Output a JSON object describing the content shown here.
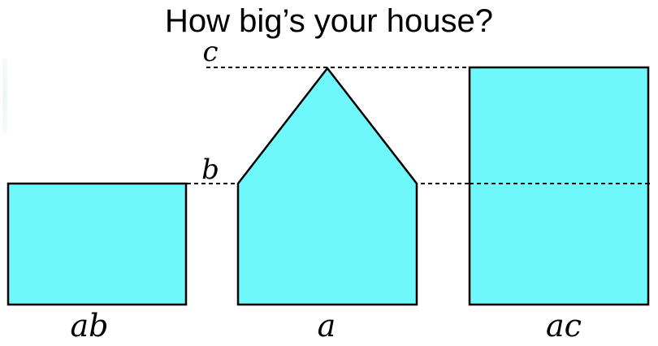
{
  "title": "How big’s your house?",
  "labels": {
    "c": "c",
    "b": "b",
    "left_shape": "ab",
    "middle_shape": "a",
    "right_shape": "ac"
  },
  "colors": {
    "fill": "#6ef8fc",
    "stroke": "#000000",
    "guide": "#000000"
  }
}
